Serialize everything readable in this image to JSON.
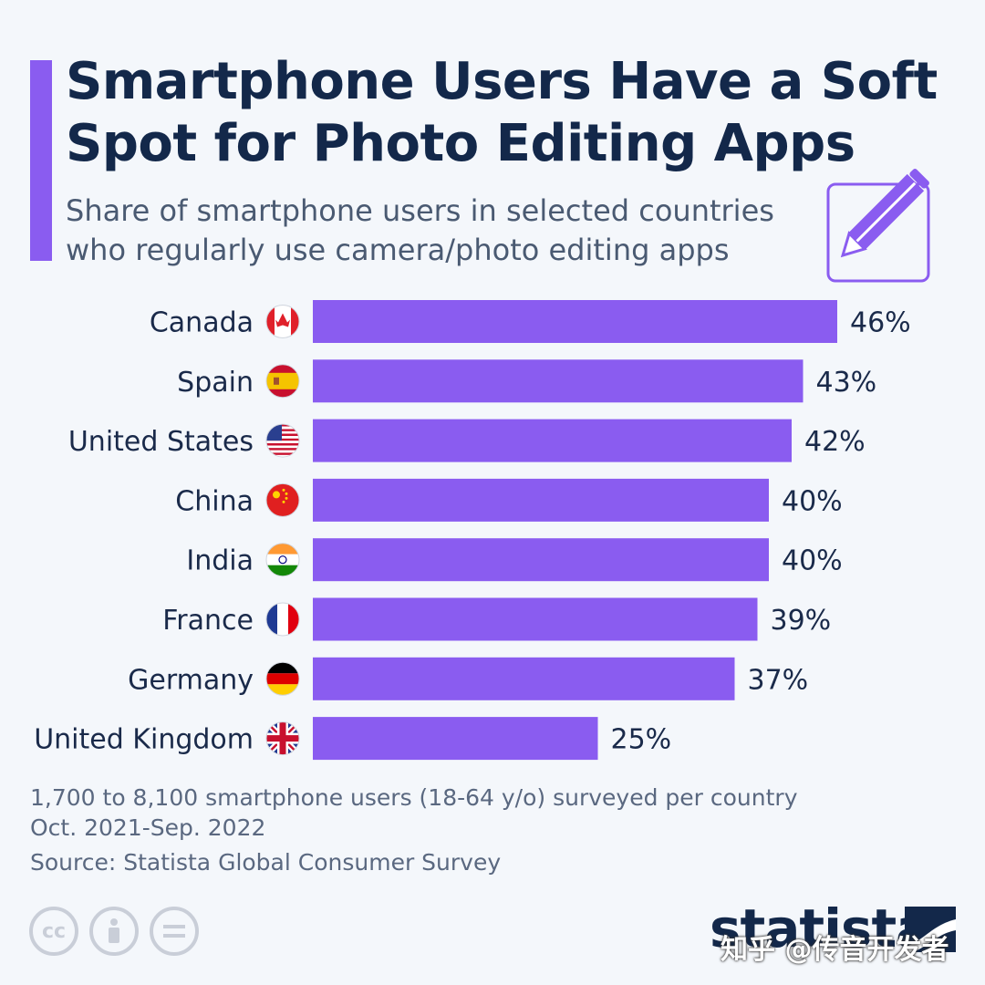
{
  "header": {
    "title": "Smartphone Users Have a Soft Spot for Photo Editing Apps",
    "subtitle": "Share of smartphone users in selected countries who regularly use camera/photo editing apps"
  },
  "footer": {
    "note": "1,700 to 8,100 smartphone users (18-64 y/o) surveyed per country\nOct. 2021-Sep. 2022",
    "source": "Source: Statista Global Consumer Survey",
    "brand": "statista",
    "watermark": "知乎 @传音开发者"
  },
  "icons": {
    "decoration": "pencil-icon",
    "license": [
      "cc-icon",
      "attribution-icon",
      "no-derivatives-icon"
    ]
  },
  "colors": {
    "bar": "#8a5cf0",
    "accent": "#8a5cf0",
    "title": "#13284a",
    "text": "#1a2a4a",
    "background": "#f4f7fb"
  },
  "chart_data": {
    "type": "bar",
    "orientation": "horizontal",
    "categories": [
      "Canada",
      "Spain",
      "United States",
      "China",
      "India",
      "France",
      "Germany",
      "United Kingdom"
    ],
    "flags": [
      "canada-flag-icon",
      "spain-flag-icon",
      "usa-flag-icon",
      "china-flag-icon",
      "india-flag-icon",
      "france-flag-icon",
      "germany-flag-icon",
      "uk-flag-icon"
    ],
    "values": [
      46,
      43,
      42,
      40,
      40,
      39,
      37,
      25
    ],
    "value_suffix": "%",
    "xlim": [
      0,
      46
    ],
    "grid": false
  }
}
